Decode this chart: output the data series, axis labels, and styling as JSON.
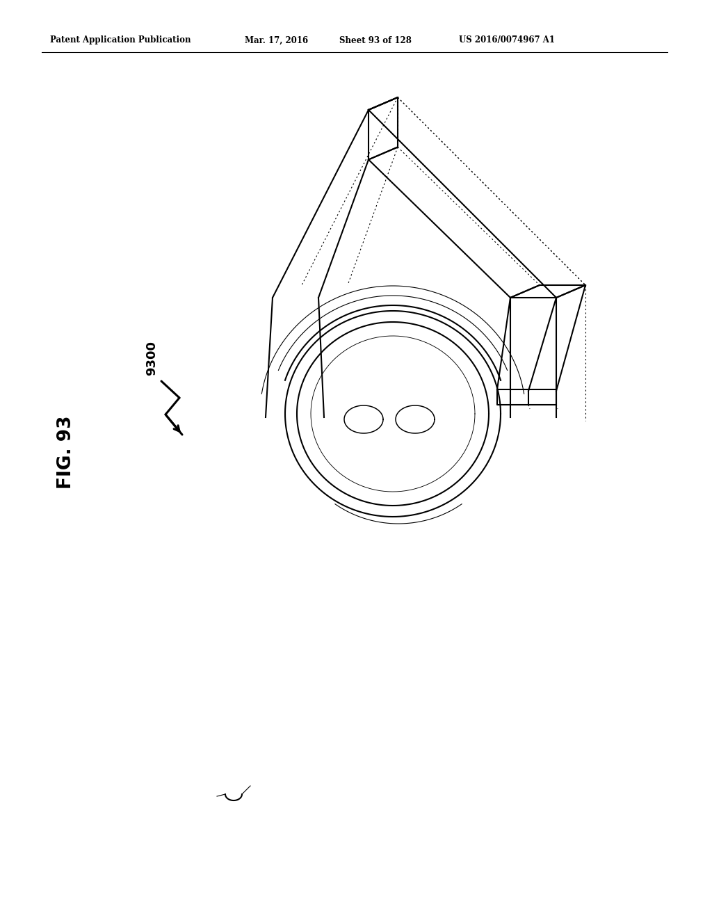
{
  "background_color": "#ffffff",
  "header_text": "Patent Application Publication",
  "header_date": "Mar. 17, 2016",
  "header_sheet": "Sheet 93 of 128",
  "header_patent": "US 2016/0074967 A1",
  "fig_label": "FIG. 93",
  "ref_number": "9300",
  "line_color": "#000000",
  "gray_color": "#888888"
}
